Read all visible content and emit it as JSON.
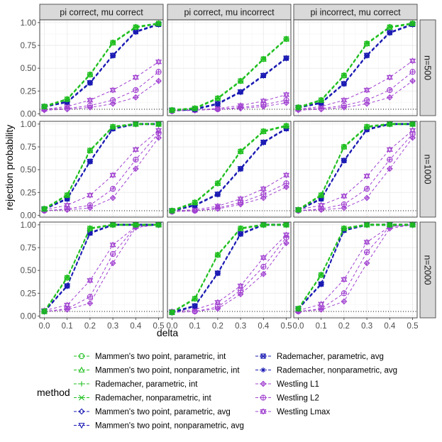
{
  "chart_data": {
    "type": "line",
    "xlabel": "delta",
    "ylabel": "rejection probability",
    "x": [
      0.0,
      0.1,
      0.2,
      0.3,
      0.4,
      0.5
    ],
    "x_ticks": [
      "0.0",
      "0.1",
      "0.2",
      "0.3",
      "0.4",
      "0.5"
    ],
    "y_ticks": [
      "0.00",
      "0.25",
      "0.50",
      "0.75",
      "1.00"
    ],
    "xlim": [
      -0.02,
      0.52
    ],
    "ylim": [
      -0.02,
      1.03
    ],
    "reference_line": 0.05,
    "col_strips": [
      "pi correct, mu correct",
      "pi correct, mu incorrect",
      "pi incorrect, mu correct"
    ],
    "row_strips": [
      "n=500",
      "n=1000",
      "n=2000"
    ],
    "legend_title": "method",
    "colors": {
      "green": "#1fbf1f",
      "blue": "#1a1ab3",
      "purple": "#a040d0",
      "strip": "#d9d9d9",
      "grid": "#ebebeb",
      "frame": "#333333"
    },
    "legend": [
      {
        "label": "Mammen's two point, parametric, int",
        "group": "green",
        "shape": "circle"
      },
      {
        "label": "Mammen's two point, nonparametric, int",
        "group": "green",
        "shape": "triangle"
      },
      {
        "label": "Rademacher, parametric, int",
        "group": "green",
        "shape": "plus"
      },
      {
        "label": "Rademacher, nonparametric, int",
        "group": "green",
        "shape": "cross"
      },
      {
        "label": "Mammen's two point, parametric, avg",
        "group": "blue",
        "shape": "diamond"
      },
      {
        "label": "Mammen's two point, nonparametric, avg",
        "group": "blue",
        "shape": "triangle-down"
      },
      {
        "label": "Rademacher, parametric, avg",
        "group": "blue",
        "shape": "boxcross"
      },
      {
        "label": "Rademacher, nonparametric, avg",
        "group": "blue",
        "shape": "star"
      },
      {
        "label": "Westling L1",
        "group": "purple",
        "shape": "diamondplus"
      },
      {
        "label": "Westling L2",
        "group": "purple",
        "shape": "circleplus"
      },
      {
        "label": "Westling Lmax",
        "group": "purple",
        "shape": "hexstar"
      }
    ],
    "panels": [
      {
        "row": 0,
        "col": 0,
        "green": [
          0.08,
          0.16,
          0.43,
          0.78,
          0.95,
          0.99
        ],
        "blue": [
          0.08,
          0.13,
          0.34,
          0.64,
          0.9,
          0.98
        ],
        "westling_l1": [
          0.04,
          0.05,
          0.07,
          0.11,
          0.18,
          0.36
        ],
        "westling_l2": [
          0.05,
          0.06,
          0.09,
          0.15,
          0.26,
          0.46
        ],
        "westling_lmax": [
          0.05,
          0.08,
          0.15,
          0.26,
          0.4,
          0.57
        ]
      },
      {
        "row": 0,
        "col": 1,
        "green": [
          0.04,
          0.06,
          0.17,
          0.36,
          0.6,
          0.82
        ],
        "blue": [
          0.04,
          0.05,
          0.11,
          0.24,
          0.42,
          0.61
        ],
        "westling_l1": [
          0.03,
          0.04,
          0.05,
          0.06,
          0.08,
          0.12
        ],
        "westling_l2": [
          0.03,
          0.04,
          0.05,
          0.07,
          0.1,
          0.15
        ],
        "westling_lmax": [
          0.04,
          0.04,
          0.06,
          0.09,
          0.14,
          0.21
        ]
      },
      {
        "row": 0,
        "col": 2,
        "green": [
          0.07,
          0.15,
          0.42,
          0.77,
          0.95,
          0.99
        ],
        "blue": [
          0.07,
          0.12,
          0.33,
          0.64,
          0.89,
          0.98
        ],
        "westling_l1": [
          0.04,
          0.05,
          0.07,
          0.11,
          0.18,
          0.36
        ],
        "westling_l2": [
          0.05,
          0.06,
          0.09,
          0.15,
          0.26,
          0.46
        ],
        "westling_lmax": [
          0.05,
          0.08,
          0.15,
          0.26,
          0.4,
          0.58
        ]
      },
      {
        "row": 1,
        "col": 0,
        "green": [
          0.07,
          0.22,
          0.71,
          0.97,
          1.0,
          1.0
        ],
        "blue": [
          0.07,
          0.18,
          0.59,
          0.95,
          1.0,
          1.0
        ],
        "westling_l1": [
          0.05,
          0.06,
          0.08,
          0.19,
          0.51,
          0.85
        ],
        "westling_l2": [
          0.05,
          0.07,
          0.11,
          0.29,
          0.61,
          0.9
        ],
        "westling_lmax": [
          0.06,
          0.11,
          0.22,
          0.44,
          0.72,
          0.93
        ]
      },
      {
        "row": 1,
        "col": 1,
        "green": [
          0.05,
          0.14,
          0.35,
          0.7,
          0.92,
          0.98
        ],
        "blue": [
          0.05,
          0.11,
          0.23,
          0.51,
          0.8,
          0.95
        ],
        "westling_l1": [
          0.04,
          0.05,
          0.07,
          0.12,
          0.19,
          0.31
        ],
        "westling_l2": [
          0.04,
          0.05,
          0.08,
          0.14,
          0.23,
          0.35
        ],
        "westling_lmax": [
          0.05,
          0.06,
          0.1,
          0.18,
          0.29,
          0.44
        ]
      },
      {
        "row": 1,
        "col": 2,
        "green": [
          0.06,
          0.22,
          0.75,
          0.97,
          1.0,
          1.0
        ],
        "blue": [
          0.06,
          0.18,
          0.6,
          0.94,
          1.0,
          1.0
        ],
        "westling_l1": [
          0.05,
          0.06,
          0.08,
          0.19,
          0.51,
          0.85
        ],
        "westling_l2": [
          0.05,
          0.07,
          0.12,
          0.29,
          0.61,
          0.89
        ],
        "westling_lmax": [
          0.06,
          0.11,
          0.21,
          0.43,
          0.72,
          0.93
        ]
      },
      {
        "row": 2,
        "col": 0,
        "green": [
          0.05,
          0.42,
          0.96,
          1.0,
          1.0,
          1.0
        ],
        "blue": [
          0.05,
          0.33,
          0.91,
          1.0,
          1.0,
          1.0
        ],
        "westling_l1": [
          0.05,
          0.07,
          0.14,
          0.58,
          0.97,
          1.0
        ],
        "westling_l2": [
          0.05,
          0.08,
          0.21,
          0.68,
          0.98,
          1.0
        ],
        "westling_lmax": [
          0.06,
          0.12,
          0.39,
          0.78,
          0.98,
          1.0
        ]
      },
      {
        "row": 2,
        "col": 1,
        "green": [
          0.04,
          0.19,
          0.67,
          0.96,
          1.0,
          1.0
        ],
        "blue": [
          0.04,
          0.11,
          0.47,
          0.9,
          1.0,
          1.0
        ],
        "westling_l1": [
          0.04,
          0.05,
          0.08,
          0.24,
          0.46,
          0.8
        ],
        "westling_l2": [
          0.04,
          0.05,
          0.1,
          0.28,
          0.54,
          0.86
        ],
        "westling_lmax": [
          0.05,
          0.07,
          0.15,
          0.33,
          0.64,
          0.89
        ]
      },
      {
        "row": 2,
        "col": 2,
        "green": [
          0.08,
          0.45,
          0.96,
          1.0,
          1.0,
          1.0
        ],
        "blue": [
          0.08,
          0.35,
          0.94,
          1.0,
          1.0,
          1.0
        ],
        "westling_l1": [
          0.05,
          0.07,
          0.16,
          0.58,
          0.96,
          1.0
        ],
        "westling_l2": [
          0.05,
          0.08,
          0.25,
          0.7,
          0.98,
          1.0
        ],
        "westling_lmax": [
          0.06,
          0.13,
          0.4,
          0.81,
          0.98,
          1.0
        ]
      }
    ]
  }
}
